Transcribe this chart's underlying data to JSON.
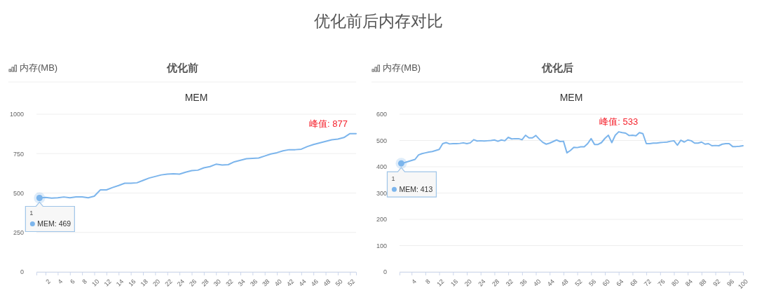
{
  "chart_data": [
    {
      "type": "other",
      "title": "优化前后内存对比"
    },
    {
      "type": "line",
      "title": "优化前",
      "subtitle": "MEM",
      "ylabel": "内存(MB)",
      "x": [
        1,
        2,
        3,
        4,
        5,
        6,
        7,
        8,
        9,
        10,
        11,
        12,
        13,
        14,
        15,
        16,
        17,
        18,
        19,
        20,
        21,
        22,
        23,
        24,
        25,
        26,
        27,
        28,
        29,
        30,
        31,
        32,
        33,
        34,
        35,
        36,
        37,
        38,
        39,
        40,
        41,
        42,
        43,
        44,
        45,
        46,
        47,
        48,
        49,
        50,
        51,
        52,
        53
      ],
      "series": [
        {
          "color": "#7cb5ec",
          "values": [
            469,
            472,
            468,
            470,
            475,
            470,
            476,
            476,
            470,
            480,
            520,
            520,
            535,
            548,
            562,
            562,
            565,
            580,
            595,
            605,
            615,
            620,
            622,
            620,
            632,
            642,
            645,
            660,
            668,
            683,
            678,
            680,
            698,
            708,
            718,
            720,
            722,
            735,
            748,
            756,
            768,
            775,
            775,
            778,
            795,
            808,
            818,
            828,
            838,
            842,
            852,
            877,
            877
          ]
        }
      ],
      "xlim": [
        0.5,
        53
      ],
      "xticks": [
        2,
        4,
        6,
        8,
        10,
        12,
        14,
        16,
        18,
        20,
        22,
        24,
        26,
        28,
        30,
        32,
        34,
        36,
        38,
        40,
        42,
        44,
        46,
        48,
        50,
        52
      ],
      "ylim": [
        0,
        1000
      ],
      "yticks": [
        0,
        250,
        500,
        750,
        1000
      ],
      "grid": "y",
      "marker": "none",
      "annotations": [
        {
          "text": "1",
          "x": 1,
          "y": 469
        },
        {
          "text": "MEM: 469",
          "x": 1,
          "y": 469
        },
        {
          "text": "峰值: 877",
          "x": 53,
          "y": 877
        }
      ]
    },
    {
      "type": "line",
      "title": "优化后",
      "subtitle": "MEM",
      "ylabel": "内存(MB)",
      "x": [
        1,
        2,
        3,
        4,
        5,
        6,
        7,
        8,
        9,
        10,
        11,
        12,
        13,
        14,
        15,
        16,
        17,
        18,
        19,
        20,
        21,
        22,
        23,
        24,
        25,
        26,
        27,
        28,
        29,
        30,
        31,
        32,
        33,
        34,
        35,
        36,
        37,
        38,
        39,
        40,
        41,
        42,
        43,
        44,
        45,
        46,
        47,
        48,
        49,
        50,
        51,
        52,
        53,
        54,
        55,
        56,
        57,
        58,
        59,
        60,
        61,
        62,
        63,
        64,
        65,
        66,
        67,
        68,
        69,
        70,
        71,
        72,
        73,
        74,
        75,
        76,
        77,
        78,
        79,
        80,
        81,
        82,
        83,
        84,
        85,
        86,
        87,
        88,
        89,
        90,
        91,
        92,
        93,
        94,
        95,
        96,
        97,
        98,
        99,
        100
      ],
      "series": [
        {
          "color": "#7cb5ec",
          "values": [
            413,
            416,
            420,
            424,
            428,
            445,
            450,
            453,
            456,
            458,
            462,
            466,
            488,
            492,
            487,
            488,
            488,
            489,
            491,
            488,
            491,
            503,
            498,
            499,
            498,
            499,
            500,
            502,
            497,
            502,
            499,
            512,
            506,
            507,
            507,
            503,
            520,
            510,
            510,
            519,
            505,
            493,
            486,
            490,
            496,
            502,
            496,
            497,
            453,
            462,
            474,
            473,
            476,
            476,
            488,
            507,
            485,
            485,
            492,
            508,
            520,
            492,
            520,
            533,
            530,
            528,
            519,
            520,
            518,
            530,
            526,
            488,
            488,
            490,
            490,
            492,
            493,
            494,
            497,
            499,
            482,
            501,
            494,
            502,
            499,
            490,
            490,
            494,
            486,
            488,
            480,
            481,
            480,
            486,
            488,
            488,
            477,
            477,
            478,
            480
          ]
        }
      ],
      "xlim": [
        0.5,
        100
      ],
      "xticks": [
        4,
        8,
        12,
        16,
        20,
        24,
        28,
        32,
        36,
        40,
        44,
        48,
        52,
        56,
        60,
        64,
        68,
        72,
        76,
        80,
        84,
        88,
        92,
        96,
        100
      ],
      "ylim": [
        0,
        600
      ],
      "yticks": [
        0,
        100,
        200,
        300,
        400,
        500,
        600
      ],
      "grid": "y",
      "marker": "none",
      "annotations": [
        {
          "text": "1",
          "x": 1,
          "y": 413
        },
        {
          "text": "MEM: 413",
          "x": 1,
          "y": 413
        },
        {
          "text": "峰值: 533",
          "x": 64,
          "y": 533
        }
      ]
    }
  ]
}
